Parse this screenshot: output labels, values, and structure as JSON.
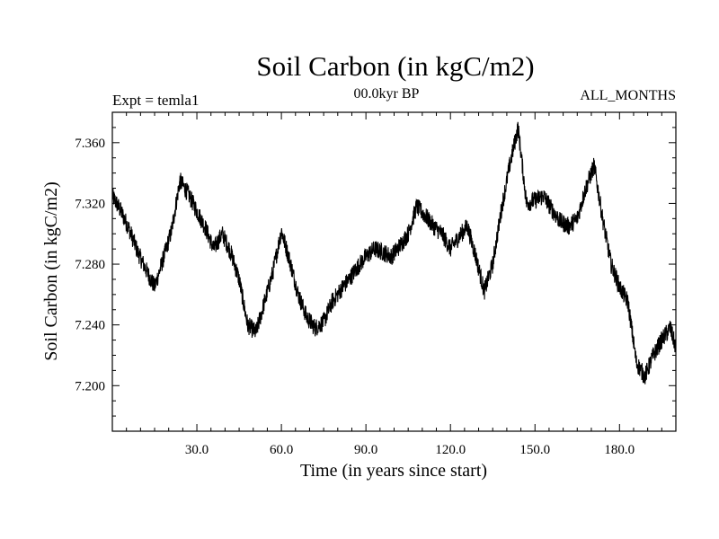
{
  "header": {
    "title": "Soil Carbon (in kgC/m2)",
    "experiment": "Expt = temla1",
    "period": "00.0kyr BP",
    "months": "ALL_MONTHS"
  },
  "chart_data": {
    "type": "line",
    "title": "Soil Carbon (in kgC/m2)",
    "xlabel": "Time (in years since start)",
    "ylabel": "Soil Carbon (in kgC/m2)",
    "xlim": [
      0,
      200
    ],
    "ylim": [
      7.17,
      7.38
    ],
    "x_ticks": [
      30,
      60,
      90,
      120,
      150,
      180
    ],
    "x_tick_labels": [
      "30.0",
      "60.0",
      "90.0",
      "120.0",
      "150.0",
      "180.0"
    ],
    "y_ticks": [
      7.2,
      7.24,
      7.28,
      7.32,
      7.36
    ],
    "y_tick_labels": [
      "7.200",
      "7.240",
      "7.280",
      "7.320",
      "7.360"
    ],
    "grid": false,
    "series": [
      {
        "x": [
          0,
          3,
          6,
          9,
          12,
          15,
          18,
          21,
          24,
          27,
          30,
          33,
          36,
          39,
          42,
          45,
          48,
          51,
          54,
          57,
          60,
          63,
          66,
          69,
          72,
          75,
          78,
          81,
          84,
          87,
          90,
          93,
          96,
          99,
          102,
          105,
          108,
          111,
          114,
          117,
          120,
          123,
          126,
          129,
          132,
          135,
          138,
          141,
          144,
          147,
          150,
          153,
          156,
          159,
          162,
          165,
          168,
          171,
          174,
          177,
          180,
          183,
          186,
          189,
          192,
          195,
          198,
          200
        ],
        "values": [
          7.325,
          7.315,
          7.303,
          7.288,
          7.276,
          7.265,
          7.283,
          7.302,
          7.335,
          7.326,
          7.315,
          7.304,
          7.29,
          7.3,
          7.288,
          7.27,
          7.24,
          7.235,
          7.255,
          7.275,
          7.302,
          7.282,
          7.26,
          7.245,
          7.238,
          7.242,
          7.255,
          7.263,
          7.27,
          7.278,
          7.285,
          7.29,
          7.288,
          7.285,
          7.292,
          7.3,
          7.318,
          7.312,
          7.305,
          7.3,
          7.29,
          7.298,
          7.305,
          7.285,
          7.262,
          7.28,
          7.315,
          7.345,
          7.37,
          7.32,
          7.322,
          7.325,
          7.316,
          7.308,
          7.305,
          7.31,
          7.33,
          7.345,
          7.31,
          7.28,
          7.265,
          7.255,
          7.215,
          7.206,
          7.22,
          7.23,
          7.238,
          7.225
        ],
        "noise_amplitude": 0.006,
        "color": "#000000"
      }
    ]
  }
}
